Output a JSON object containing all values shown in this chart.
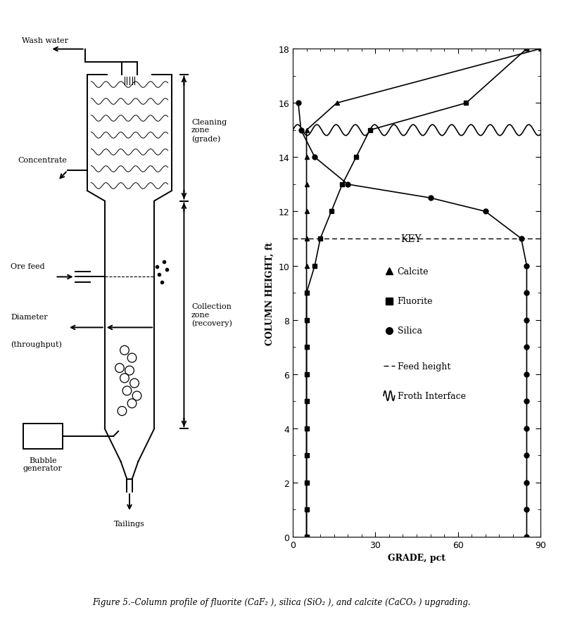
{
  "calcite_grade": [
    5,
    5,
    5,
    5,
    5,
    5,
    5,
    5,
    5,
    5,
    5,
    5,
    5,
    5,
    5,
    5,
    16,
    90
  ],
  "calcite_height": [
    0,
    1,
    2,
    3,
    4,
    5,
    6,
    7,
    8,
    9,
    10,
    11,
    12,
    13,
    14,
    15,
    16,
    18
  ],
  "fluorite_grade": [
    5,
    5,
    5,
    5,
    5,
    5,
    5,
    5,
    5,
    5,
    8,
    10,
    14,
    18,
    23,
    28,
    63,
    85
  ],
  "fluorite_height": [
    0,
    1,
    2,
    3,
    4,
    5,
    6,
    7,
    8,
    9,
    10,
    11,
    12,
    13,
    14,
    15,
    16,
    18
  ],
  "silica_grade": [
    85,
    85,
    85,
    85,
    85,
    85,
    85,
    85,
    85,
    85,
    85,
    83,
    70,
    50,
    20,
    8,
    3,
    2
  ],
  "silica_height": [
    0,
    1,
    2,
    3,
    4,
    5,
    6,
    7,
    8,
    9,
    10,
    11,
    12,
    12.5,
    13,
    14,
    15,
    16
  ],
  "feed_height": 11,
  "froth_interface": 15,
  "xlim": [
    0,
    90
  ],
  "ylim": [
    0,
    18
  ],
  "xlabel": "GRADE, pct",
  "ylabel": "COLUMN HEIGHT, ft",
  "xticks": [
    0,
    30,
    60,
    90
  ],
  "yticks": [
    0,
    2,
    4,
    6,
    8,
    10,
    12,
    14,
    16,
    18
  ],
  "key_title": "KEY",
  "legend_calcite": "Calcite",
  "legend_fluorite": "Fluorite",
  "legend_silica": "Silica",
  "legend_feed": "Feed height",
  "legend_froth": "Froth Interface",
  "line_color": "#000000",
  "bg_color": "#ffffff",
  "figure_caption": "Figure 5.–Column profile of fluorite (CaF₂ ), silica (SiO₂ ), and calcite (CaCO₃ ) upgrading."
}
